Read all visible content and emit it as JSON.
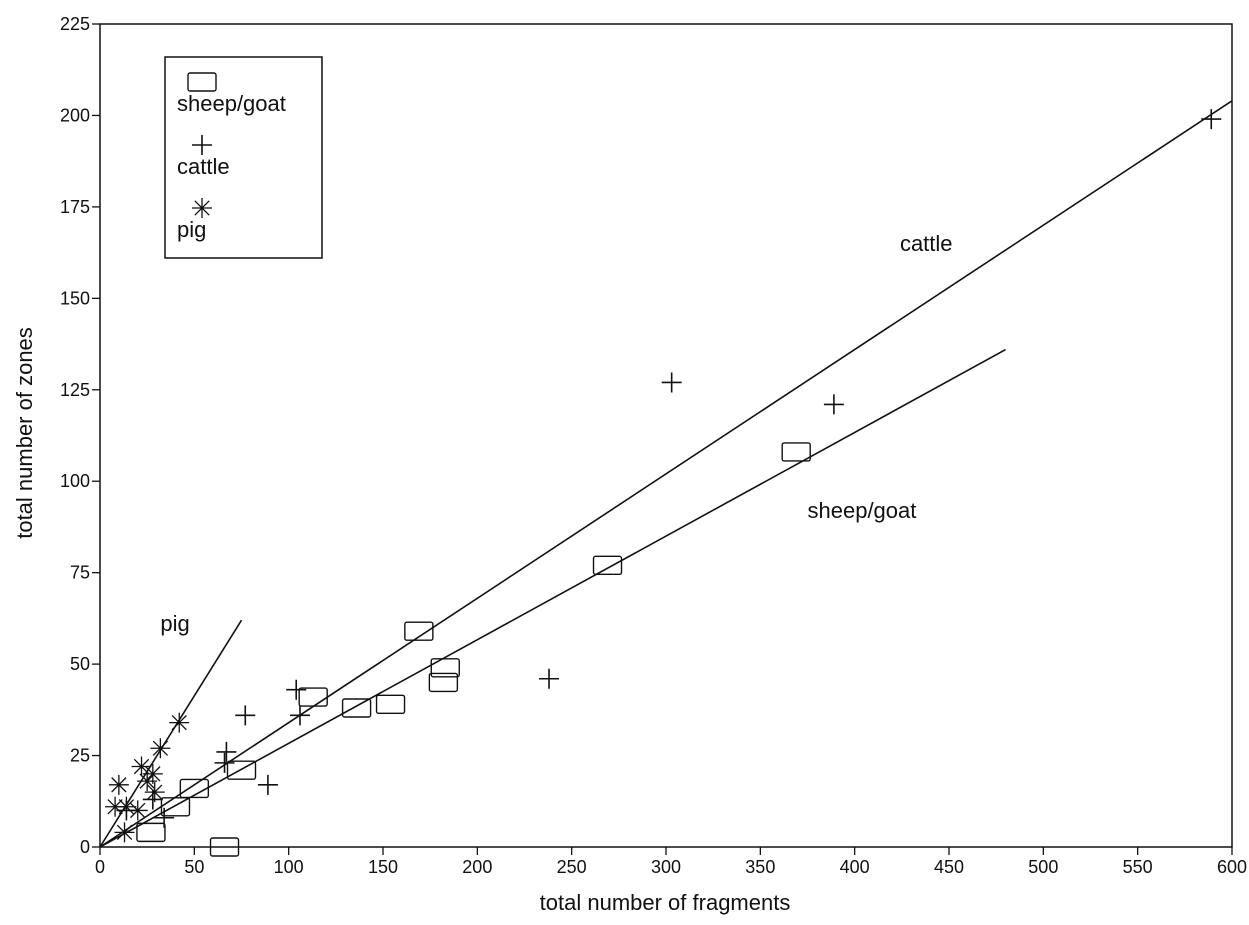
{
  "chart_data": {
    "type": "scatter",
    "title": "",
    "xlabel": "total number of fragments",
    "ylabel": "total number of zones",
    "xlim": [
      0,
      600
    ],
    "ylim": [
      0,
      225
    ],
    "xticks": [
      0,
      50,
      100,
      150,
      200,
      250,
      300,
      350,
      400,
      450,
      500,
      550,
      600
    ],
    "yticks": [
      0,
      25,
      50,
      75,
      100,
      125,
      150,
      175,
      200,
      225
    ],
    "grid": false,
    "legend": {
      "position": "top-left",
      "entries": [
        {
          "label": "sheep/goat",
          "marker": "square"
        },
        {
          "label": "cattle",
          "marker": "plus"
        },
        {
          "label": "pig",
          "marker": "asterisk"
        }
      ]
    },
    "series": [
      {
        "name": "sheep/goat",
        "marker": "square",
        "points": [
          [
            27,
            4
          ],
          [
            40,
            11
          ],
          [
            50,
            16
          ],
          [
            66,
            0
          ],
          [
            75,
            21
          ],
          [
            113,
            41
          ],
          [
            136,
            38
          ],
          [
            154,
            39
          ],
          [
            169,
            59
          ],
          [
            182,
            45
          ],
          [
            183,
            49
          ],
          [
            269,
            77
          ],
          [
            369,
            108
          ]
        ]
      },
      {
        "name": "cattle",
        "marker": "plus",
        "points": [
          [
            14,
            10
          ],
          [
            28,
            13
          ],
          [
            34,
            8
          ],
          [
            66,
            23
          ],
          [
            67,
            26
          ],
          [
            77,
            36
          ],
          [
            89,
            17
          ],
          [
            104,
            43
          ],
          [
            106,
            36
          ],
          [
            238,
            46
          ],
          [
            303,
            127
          ],
          [
            389,
            121
          ],
          [
            589,
            199
          ]
        ]
      },
      {
        "name": "pig",
        "marker": "asterisk",
        "points": [
          [
            8,
            11
          ],
          [
            10,
            17
          ],
          [
            13,
            4
          ],
          [
            14,
            11
          ],
          [
            20,
            10
          ],
          [
            22,
            22
          ],
          [
            25,
            18
          ],
          [
            28,
            20
          ],
          [
            29,
            15
          ],
          [
            32,
            27
          ],
          [
            42,
            34
          ]
        ]
      }
    ],
    "fit_lines": [
      {
        "label": "cattle",
        "x": [
          0,
          600
        ],
        "y": [
          0,
          204
        ]
      },
      {
        "label": "sheep/goat",
        "x": [
          0,
          480
        ],
        "y": [
          0,
          136
        ]
      },
      {
        "label": "pig",
        "x": [
          0,
          75
        ],
        "y": [
          0,
          62
        ]
      }
    ],
    "annotations": [
      {
        "text": "cattle",
        "x": 424,
        "y": 163
      },
      {
        "text": "sheep/goat",
        "x": 375,
        "y": 90
      },
      {
        "text": "pig",
        "x": 32,
        "y": 59
      }
    ],
    "colors": {
      "ink": "#111111",
      "background": "#ffffff"
    }
  }
}
